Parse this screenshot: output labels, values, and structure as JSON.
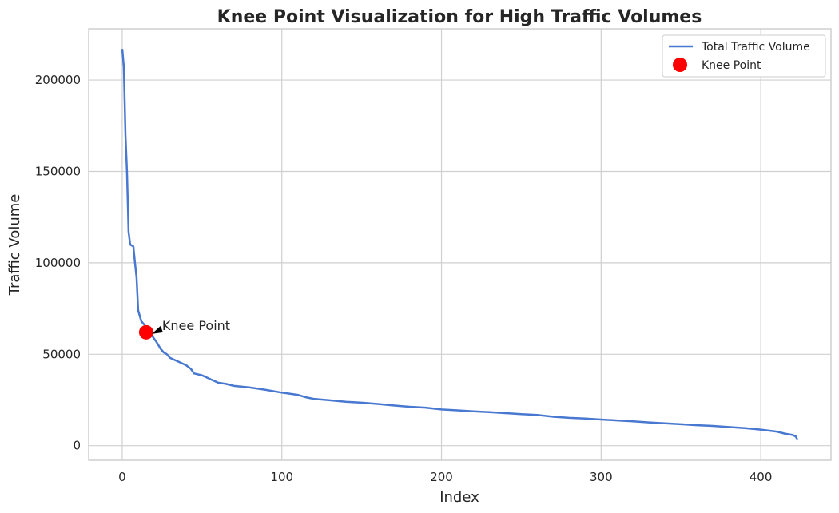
{
  "chart_data": {
    "type": "line",
    "title": "Knee Point Visualization for High Traffic Volumes",
    "xlabel": "Index",
    "ylabel": "Traffic Volume",
    "xlim": [
      -21,
      444
    ],
    "ylim": [
      -8000,
      228000
    ],
    "x_ticks": [
      0,
      100,
      200,
      300,
      400
    ],
    "y_ticks": [
      0,
      50000,
      100000,
      150000,
      200000
    ],
    "grid": true,
    "legend_position": "top-right",
    "series": [
      {
        "name": "Total Traffic Volume",
        "color": "#4878d0",
        "points": [
          [
            0,
            217000
          ],
          [
            1,
            207000
          ],
          [
            2,
            170000
          ],
          [
            3,
            150000
          ],
          [
            4,
            117000
          ],
          [
            5,
            110000
          ],
          [
            7,
            109000
          ],
          [
            8,
            100000
          ],
          [
            9,
            92000
          ],
          [
            10,
            74000
          ],
          [
            12,
            68000
          ],
          [
            14,
            66000
          ],
          [
            16,
            63000
          ],
          [
            18,
            61000
          ],
          [
            20,
            58500
          ],
          [
            22,
            56000
          ],
          [
            24,
            53000
          ],
          [
            26,
            51000
          ],
          [
            28,
            50000
          ],
          [
            30,
            48000
          ],
          [
            35,
            46000
          ],
          [
            40,
            44000
          ],
          [
            43,
            42000
          ],
          [
            45,
            39500
          ],
          [
            50,
            38500
          ],
          [
            55,
            36500
          ],
          [
            60,
            34500
          ],
          [
            65,
            33800
          ],
          [
            70,
            32700
          ],
          [
            80,
            31800
          ],
          [
            90,
            30500
          ],
          [
            100,
            29000
          ],
          [
            110,
            27800
          ],
          [
            115,
            26500
          ],
          [
            120,
            25600
          ],
          [
            130,
            24800
          ],
          [
            140,
            24000
          ],
          [
            150,
            23500
          ],
          [
            160,
            22800
          ],
          [
            170,
            22000
          ],
          [
            180,
            21300
          ],
          [
            190,
            20800
          ],
          [
            200,
            19800
          ],
          [
            210,
            19300
          ],
          [
            220,
            18800
          ],
          [
            230,
            18300
          ],
          [
            240,
            17800
          ],
          [
            250,
            17200
          ],
          [
            260,
            16800
          ],
          [
            270,
            15800
          ],
          [
            280,
            15200
          ],
          [
            290,
            14800
          ],
          [
            300,
            14300
          ],
          [
            310,
            13800
          ],
          [
            320,
            13300
          ],
          [
            330,
            12700
          ],
          [
            340,
            12200
          ],
          [
            350,
            11700
          ],
          [
            360,
            11200
          ],
          [
            370,
            10800
          ],
          [
            380,
            10200
          ],
          [
            390,
            9600
          ],
          [
            400,
            8800
          ],
          [
            410,
            7700
          ],
          [
            415,
            6600
          ],
          [
            420,
            5800
          ],
          [
            422,
            5000
          ],
          [
            423,
            3000
          ]
        ]
      }
    ],
    "knee_point": {
      "name": "Knee Point",
      "x": 15,
      "y": 62000,
      "color": "#ff0000"
    },
    "annotation": {
      "text": "Knee Point",
      "x": 15,
      "y": 62000
    }
  }
}
